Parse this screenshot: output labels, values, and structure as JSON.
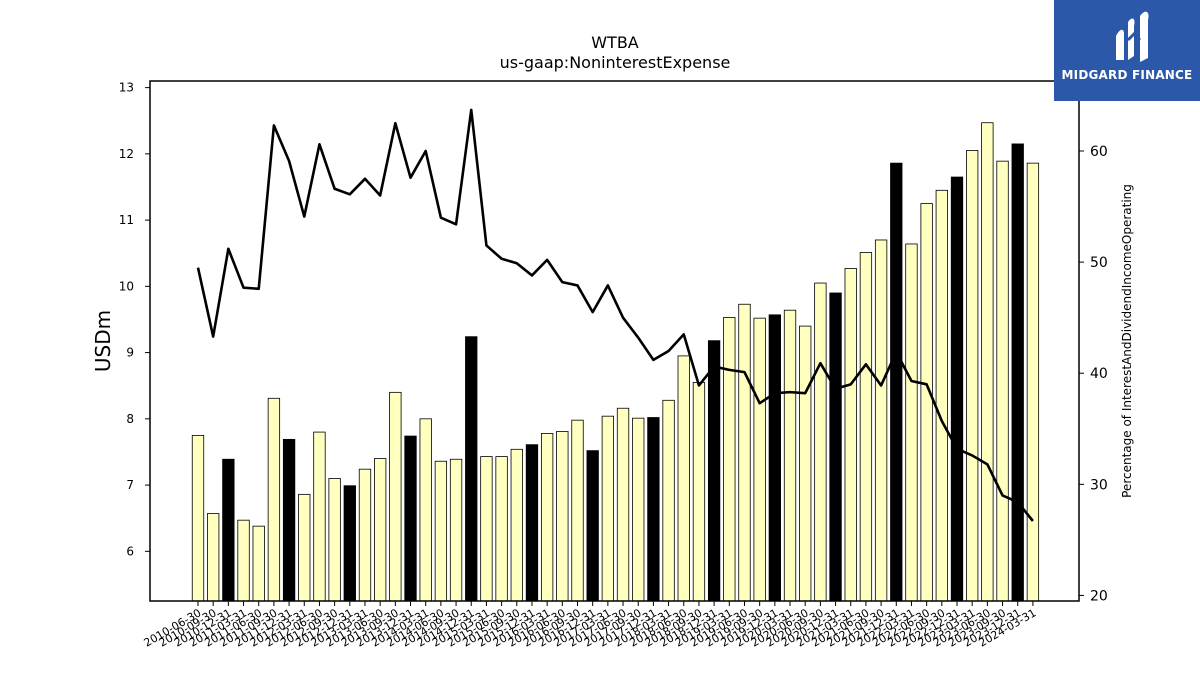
{
  "chart_data": {
    "type": "bar",
    "title": "WTBA",
    "subtitle": "us-gaap:NoninterestExpense",
    "ylabel": "USDm",
    "y2label": "Percentage of InterestAndDividendIncomeOperating",
    "ylim": [
      5.25,
      13.1
    ],
    "y2lim": [
      19.5,
      66.3
    ],
    "yticks": [
      6,
      7,
      8,
      9,
      10,
      11,
      12,
      13
    ],
    "y2ticks": [
      20,
      30,
      40,
      50,
      60
    ],
    "categories": [
      "2010-06-30",
      "2010-09-30",
      "2010-12-31",
      "2011-03-31",
      "2011-06-30",
      "2011-09-30",
      "2011-12-31",
      "2012-03-31",
      "2012-06-30",
      "2012-09-30",
      "2012-12-31",
      "2013-03-31",
      "2013-06-30",
      "2013-09-30",
      "2013-12-31",
      "2014-03-31",
      "2014-06-30",
      "2014-09-30",
      "2014-12-31",
      "2015-03-31",
      "2015-06-30",
      "2015-09-30",
      "2015-12-31",
      "2016-03-31",
      "2016-06-30",
      "2016-09-30",
      "2016-12-31",
      "2017-03-31",
      "2017-06-30",
      "2017-09-30",
      "2017-12-31",
      "2018-03-31",
      "2018-06-30",
      "2018-09-30",
      "2018-12-31",
      "2019-03-31",
      "2019-06-30",
      "2019-09-30",
      "2019-12-31",
      "2020-03-31",
      "2020-06-30",
      "2020-09-30",
      "2020-12-31",
      "2021-03-31",
      "2021-06-30",
      "2021-09-30",
      "2021-12-31",
      "2022-03-31",
      "2022-06-30",
      "2022-09-30",
      "2022-12-31",
      "2023-03-31",
      "2023-06-30",
      "2023-09-30",
      "2023-12-31",
      "2024-03-31"
    ],
    "series": [
      {
        "type": "bar",
        "axis": "left",
        "values": [
          7.75,
          6.57,
          7.39,
          6.47,
          6.38,
          8.31,
          7.69,
          6.86,
          7.8,
          7.1,
          6.99,
          7.24,
          7.4,
          8.4,
          7.74,
          8.0,
          7.36,
          7.39,
          9.24,
          7.43,
          7.43,
          7.54,
          7.61,
          7.78,
          7.81,
          7.98,
          7.52,
          8.04,
          8.16,
          8.01,
          8.02,
          8.28,
          8.95,
          8.55,
          9.18,
          9.53,
          9.73,
          9.52,
          9.57,
          9.64,
          9.4,
          10.05,
          9.9,
          10.27,
          10.51,
          10.7,
          11.86,
          10.64,
          11.25,
          11.45,
          11.65,
          12.05,
          12.47,
          11.89,
          12.15,
          11.86
        ],
        "highlight_color": "#000000",
        "color": "#ffffc0",
        "highlight": [
          false,
          false,
          true,
          false,
          false,
          false,
          true,
          false,
          false,
          false,
          true,
          false,
          false,
          false,
          true,
          false,
          false,
          false,
          true,
          false,
          false,
          false,
          true,
          false,
          false,
          false,
          true,
          false,
          false,
          false,
          true,
          false,
          false,
          false,
          true,
          false,
          false,
          false,
          true,
          false,
          false,
          false,
          true,
          false,
          false,
          false,
          true,
          false,
          false,
          false,
          true,
          false,
          false,
          false,
          true,
          false
        ]
      },
      {
        "type": "line",
        "axis": "right",
        "color": "#000000",
        "values": [
          49.5,
          43.3,
          51.2,
          47.7,
          47.6,
          62.3,
          59.1,
          54.1,
          60.6,
          56.6,
          56.1,
          57.5,
          56.0,
          62.5,
          57.6,
          60.0,
          54.0,
          53.4,
          63.7,
          51.5,
          50.3,
          49.9,
          48.8,
          50.2,
          48.2,
          47.9,
          45.5,
          47.9,
          45.0,
          43.2,
          41.2,
          42.0,
          43.5,
          38.9,
          40.6,
          40.3,
          40.1,
          37.3,
          38.2,
          38.3,
          38.2,
          40.9,
          38.6,
          39.0,
          40.8,
          38.9,
          41.9,
          39.3,
          39.0,
          35.7,
          33.2,
          32.6,
          31.8,
          29.0,
          28.4,
          26.7
        ]
      }
    ],
    "legend": "none"
  },
  "logo": {
    "text": "MIDGARD FINANCE"
  }
}
